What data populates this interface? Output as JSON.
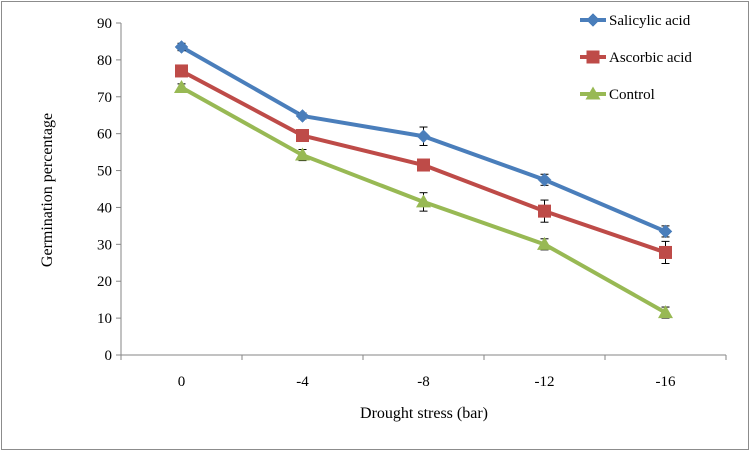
{
  "chart_data": {
    "type": "line",
    "title": "",
    "xlabel": "Drought stress (bar)",
    "ylabel": "Germination  percentage",
    "categories": [
      "0",
      "-4",
      "-8",
      "-12",
      "-16"
    ],
    "ylim": [
      0,
      90
    ],
    "yticks": [
      "0",
      "10",
      "20",
      "30",
      "40",
      "50",
      "60",
      "70",
      "80",
      "90"
    ],
    "grid": false,
    "legend_position": "top-right",
    "series": [
      {
        "name": "Salicylic acid",
        "color": "#4a7ebb",
        "marker": "diamond",
        "values": [
          83.5,
          64.8,
          59.3,
          47.5,
          33.5
        ],
        "errors": [
          1.0,
          0.8,
          2.5,
          1.5,
          1.5
        ]
      },
      {
        "name": "Ascorbic acid",
        "color": "#be4b48",
        "marker": "square",
        "values": [
          77.0,
          59.5,
          51.5,
          39.0,
          27.8
        ],
        "errors": [
          1.0,
          1.0,
          1.0,
          3.0,
          3.0
        ]
      },
      {
        "name": "Control",
        "color": "#98b954",
        "marker": "triangle",
        "values": [
          72.5,
          54.2,
          41.5,
          30.0,
          11.5
        ],
        "errors": [
          1.0,
          1.5,
          2.5,
          1.5,
          1.5
        ]
      }
    ]
  }
}
